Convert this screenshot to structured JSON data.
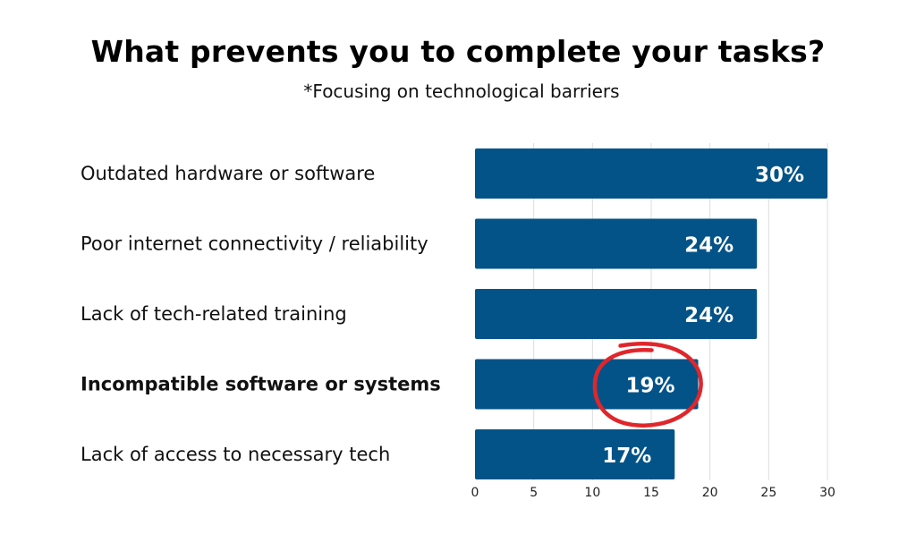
{
  "chart_data": {
    "type": "bar",
    "orientation": "horizontal",
    "title": "What prevents you to complete your tasks?",
    "subtitle": "*Focusing on technological barriers",
    "categories": [
      "Outdated hardware or software",
      "Poor internet connectivity / reliability",
      "Lack of tech-related training",
      "Incompatible software or systems",
      "Lack of access to necessary tech"
    ],
    "values": [
      30,
      24,
      24,
      19,
      17
    ],
    "data_labels": [
      "30%",
      "24%",
      "24%",
      "19%",
      "17%"
    ],
    "highlighted_category": "Incompatible software or systems",
    "xlim": [
      0,
      30
    ],
    "x_ticks": [
      "0",
      "5",
      "10",
      "15",
      "20",
      "25",
      "30"
    ],
    "grid": "vertical",
    "bar_color": "#035388",
    "highlight_circle_color": "#e0262b"
  }
}
